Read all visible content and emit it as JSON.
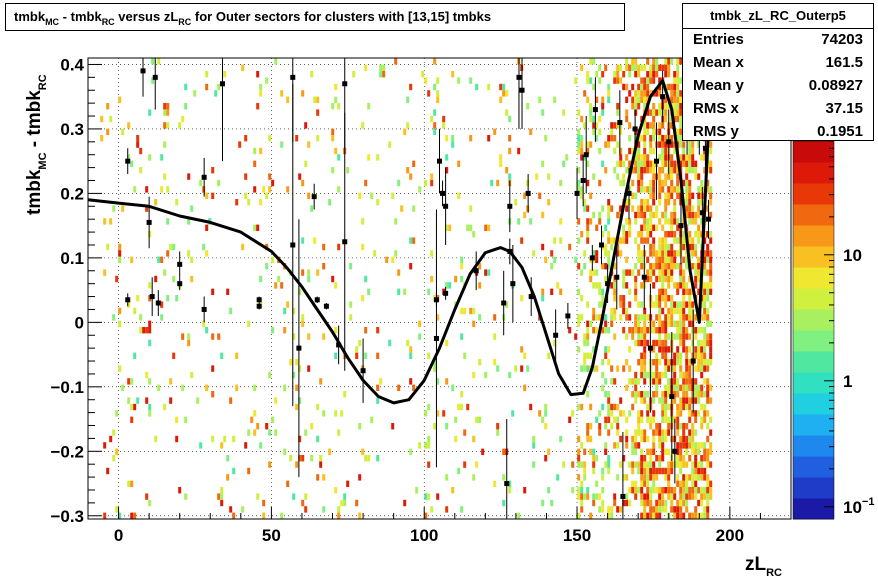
{
  "title": {
    "part1": "tmbk",
    "sub1": "MC",
    "part2": " - tmbk",
    "sub2": "RC",
    "part3": " versus zL",
    "sub3": "RC",
    "part4": " for Outer sectors for clusters with [13,15] tmbks"
  },
  "stats": {
    "name": "tmbk_zL_RC_Outerp5",
    "rows": [
      {
        "key": "Entries",
        "value": "74203"
      },
      {
        "key": "Mean x",
        "value": "161.5"
      },
      {
        "key": "Mean y",
        "value": "0.08927"
      },
      {
        "key": "RMS x",
        "value": "37.15"
      },
      {
        "key": "RMS y",
        "value": "0.1951"
      }
    ]
  },
  "chart_data": {
    "type": "heatmap",
    "xlabel": {
      "base": "zL",
      "sub": "RC"
    },
    "ylabel": {
      "base1": "tmbk",
      "sub1": "MC",
      "mid": " - tmbk",
      "sub2": "RC"
    },
    "xlim": [
      -10,
      220
    ],
    "ylim": [
      -0.305,
      0.41
    ],
    "x_ticks": [
      0,
      50,
      100,
      150,
      200
    ],
    "x_tick_labels": [
      "0",
      "50",
      "100",
      "150",
      "200"
    ],
    "y_ticks": [
      -0.3,
      -0.2,
      -0.1,
      0,
      0.1,
      0.2,
      0.3,
      0.4
    ],
    "y_tick_labels": [
      "−0.3",
      "−0.2",
      "−0.1",
      "0",
      "0.1",
      "0.2",
      "0.3",
      "0.4"
    ],
    "grid": true,
    "colorbar": {
      "scale": "log",
      "range": [
        0.08,
        80
      ],
      "ticks": [
        {
          "value": 0.1,
          "label": "10",
          "sup": "−1"
        },
        {
          "value": 1,
          "label": "1",
          "sup": ""
        },
        {
          "value": 10,
          "label": "10",
          "sup": ""
        }
      ],
      "colors": [
        "#1a1aa6",
        "#1f3cc8",
        "#2060e0",
        "#1e88ee",
        "#1eb0f0",
        "#20d0e0",
        "#30e0c0",
        "#50e8a0",
        "#80f080",
        "#a8f060",
        "#d0f040",
        "#f0e830",
        "#f8c020",
        "#f89818",
        "#f06810",
        "#e83808",
        "#dd1a0a",
        "#c80a0a"
      ]
    },
    "fit_curve": {
      "x": [
        -10,
        0,
        10,
        20,
        30,
        40,
        50,
        55,
        60,
        65,
        70,
        75,
        80,
        85,
        90,
        95,
        100,
        105,
        110,
        115,
        120,
        125,
        128,
        132,
        136,
        140,
        144,
        148,
        152,
        155,
        158,
        162,
        166,
        170,
        174,
        178,
        181,
        184,
        187,
        190,
        192,
        194
      ],
      "y": [
        0.19,
        0.185,
        0.18,
        0.165,
        0.155,
        0.14,
        0.11,
        0.085,
        0.055,
        0.02,
        -0.015,
        -0.055,
        -0.09,
        -0.115,
        -0.125,
        -0.12,
        -0.09,
        -0.04,
        0.02,
        0.075,
        0.108,
        0.116,
        0.11,
        0.085,
        0.04,
        -0.02,
        -0.08,
        -0.112,
        -0.11,
        -0.07,
        0.0,
        0.1,
        0.2,
        0.29,
        0.35,
        0.375,
        0.33,
        0.22,
        0.08,
        0.0,
        0.2,
        0.4
      ]
    },
    "profile_points": [
      {
        "x": 3,
        "y": 0.25,
        "e": 0.02
      },
      {
        "x": 3,
        "y": 0.035,
        "e": 0.01
      },
      {
        "x": 8,
        "y": 0.39,
        "e": 0.04
      },
      {
        "x": 10,
        "y": 0.155,
        "e": 0.04
      },
      {
        "x": 11,
        "y": 0.04,
        "e": 0.03
      },
      {
        "x": 12,
        "y": 0.38,
        "e": 0.05
      },
      {
        "x": 13,
        "y": 0.03,
        "e": 0.02
      },
      {
        "x": 20,
        "y": 0.09,
        "e": 0.02
      },
      {
        "x": 20,
        "y": 0.06,
        "e": 0.01
      },
      {
        "x": 28,
        "y": 0.225,
        "e": 0.03
      },
      {
        "x": 28,
        "y": 0.02,
        "e": 0.02
      },
      {
        "x": 34,
        "y": 0.37,
        "e": 0.12
      },
      {
        "x": 46,
        "y": 0.035,
        "e": 0.005
      },
      {
        "x": 46,
        "y": 0.025,
        "e": 0.005
      },
      {
        "x": 57,
        "y": 0.38,
        "e": 0.1
      },
      {
        "x": 57,
        "y": 0.12,
        "e": 0.25
      },
      {
        "x": 59,
        "y": -0.04,
        "e": 0.2
      },
      {
        "x": 64,
        "y": 0.195,
        "e": 0.02
      },
      {
        "x": 65,
        "y": 0.035,
        "e": 0.005
      },
      {
        "x": 68,
        "y": 0.025,
        "e": 0.005
      },
      {
        "x": 72,
        "y": -0.035,
        "e": 0.03
      },
      {
        "x": 74,
        "y": 0.37,
        "e": 0.1
      },
      {
        "x": 74,
        "y": 0.125,
        "e": 0.2
      },
      {
        "x": 80,
        "y": -0.075,
        "e": 0.05
      },
      {
        "x": 104,
        "y": -0.025,
        "e": 0.2
      },
      {
        "x": 104,
        "y": 0.035,
        "e": 0.01
      },
      {
        "x": 105,
        "y": 0.25,
        "e": 0.05
      },
      {
        "x": 106,
        "y": 0.2,
        "e": 0.02
      },
      {
        "x": 107,
        "y": 0.18,
        "e": 0.06
      },
      {
        "x": 107,
        "y": 0.045,
        "e": 0.01
      },
      {
        "x": 117,
        "y": 0.08,
        "e": 0.03
      },
      {
        "x": 126,
        "y": 0.03,
        "e": 0.05
      },
      {
        "x": 127,
        "y": -0.25,
        "e": 0.1
      },
      {
        "x": 128,
        "y": 0.18,
        "e": 0.04
      },
      {
        "x": 128,
        "y": 0.11,
        "e": 0.02
      },
      {
        "x": 129,
        "y": 0.06,
        "e": 0.06
      },
      {
        "x": 131,
        "y": 0.38,
        "e": 0.08
      },
      {
        "x": 132,
        "y": 0.36,
        "e": 0.06
      },
      {
        "x": 134,
        "y": 0.2,
        "e": 0.03
      },
      {
        "x": 135,
        "y": 0.04,
        "e": 0.03
      },
      {
        "x": 143,
        "y": -0.02,
        "e": 0.04
      },
      {
        "x": 147,
        "y": 0.01,
        "e": 0.02
      },
      {
        "x": 150,
        "y": 0.2,
        "e": 0.04
      },
      {
        "x": 152,
        "y": 0.22,
        "e": 0.04
      },
      {
        "x": 153,
        "y": 0.26,
        "e": 0.06
      },
      {
        "x": 155,
        "y": 0.1,
        "e": 0.02
      },
      {
        "x": 156,
        "y": 0.33,
        "e": 0.05
      },
      {
        "x": 158,
        "y": 0.12,
        "e": 0.03
      },
      {
        "x": 160,
        "y": 0.06,
        "e": 0.03
      },
      {
        "x": 163,
        "y": 0.07,
        "e": 0.05
      },
      {
        "x": 164,
        "y": 0.31,
        "e": 0.05
      },
      {
        "x": 165,
        "y": -0.27,
        "e": 0.1
      },
      {
        "x": 167,
        "y": 0.2,
        "e": 0.04
      },
      {
        "x": 169,
        "y": 0.3,
        "e": 0.03
      },
      {
        "x": 172,
        "y": 0.07,
        "e": 0.05
      },
      {
        "x": 174,
        "y": -0.04,
        "e": 0.1
      },
      {
        "x": 176,
        "y": 0.25,
        "e": 0.06
      },
      {
        "x": 178,
        "y": 0.35,
        "e": 0.04
      },
      {
        "x": 180,
        "y": 0.28,
        "e": 0.05
      },
      {
        "x": 181,
        "y": -0.115,
        "e": 0.1
      },
      {
        "x": 182,
        "y": -0.2,
        "e": 0.05
      },
      {
        "x": 184,
        "y": 0.15,
        "e": 0.06
      },
      {
        "x": 186,
        "y": 0.31,
        "e": 0.05
      },
      {
        "x": 188,
        "y": -0.06,
        "e": 0.08
      },
      {
        "x": 190,
        "y": 0.3,
        "e": 0.04
      },
      {
        "x": 191,
        "y": 0.17,
        "e": 0.04
      },
      {
        "x": 192,
        "y": 0.27,
        "e": 0.1
      },
      {
        "x": 193,
        "y": 0.16,
        "e": 0.03
      }
    ],
    "heatmap_density": {
      "description_ranges": [
        {
          "x_from": -10,
          "x_to": 150,
          "level": "sparse"
        },
        {
          "x_from": 150,
          "x_to": 170,
          "level": "medium"
        },
        {
          "x_from": 170,
          "x_to": 195,
          "level": "dense"
        }
      ]
    }
  }
}
